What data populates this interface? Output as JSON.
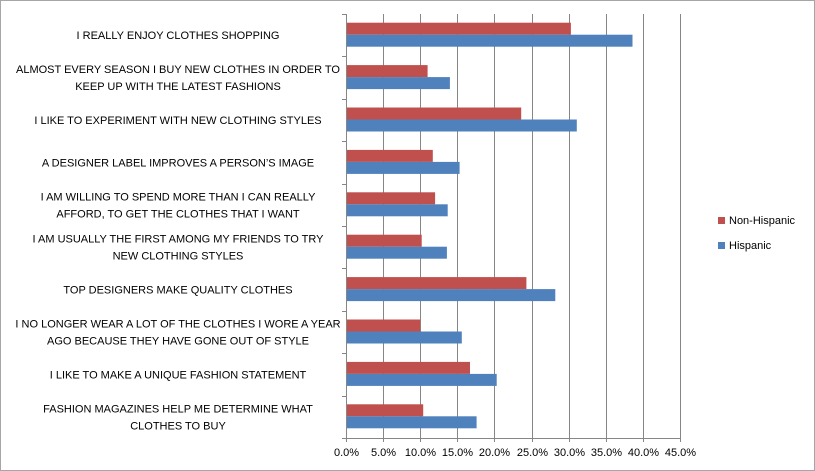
{
  "chart_data": {
    "type": "bar",
    "orientation": "horizontal",
    "categories": [
      "I REALLY ENJOY CLOTHES SHOPPING",
      "ALMOST EVERY SEASON I BUY NEW CLOTHES IN ORDER TO KEEP UP WITH THE LATEST FASHIONS",
      "I LIKE TO EXPERIMENT WITH NEW CLOTHING STYLES",
      "A DESIGNER LABEL IMPROVES A PERSON’S  IMAGE",
      "I AM WILLING TO SPEND MORE THAN I CAN REALLY AFFORD, TO GET THE CLOTHES THAT I WANT",
      "I AM USUALLY THE FIRST AMONG MY FRIENDS TO TRY NEW CLOTHING STYLES",
      "TOP DESIGNERS MAKE QUALITY CLOTHES",
      "I NO LONGER WEAR A LOT OF THE CLOTHES I WORE A YEAR AGO BECAUSE THEY HAVE GONE OUT OF STYLE",
      "I LIKE TO MAKE A UNIQUE FASHION STATEMENT",
      "FASHION MAGAZINES HELP ME DETERMINE WHAT CLOTHES TO BUY"
    ],
    "category_lines": [
      [
        "I REALLY ENJOY CLOTHES SHOPPING"
      ],
      [
        "ALMOST EVERY SEASON I BUY NEW CLOTHES IN ORDER TO",
        "KEEP UP WITH THE LATEST FASHIONS"
      ],
      [
        "I LIKE TO EXPERIMENT WITH NEW CLOTHING STYLES"
      ],
      [
        "A DESIGNER LABEL IMPROVES A PERSON’S  IMAGE"
      ],
      [
        "I AM WILLING TO SPEND MORE THAN I CAN REALLY",
        "AFFORD, TO GET THE CLOTHES THAT I WANT"
      ],
      [
        "I AM USUALLY THE FIRST AMONG MY FRIENDS TO TRY",
        "NEW CLOTHING STYLES"
      ],
      [
        "TOP DESIGNERS MAKE QUALITY CLOTHES"
      ],
      [
        "I NO LONGER WEAR A LOT OF THE CLOTHES I WORE A YEAR",
        "AGO BECAUSE THEY HAVE GONE OUT OF STYLE"
      ],
      [
        "I LIKE TO MAKE A UNIQUE FASHION STATEMENT"
      ],
      [
        "FASHION MAGAZINES HELP ME DETERMINE WHAT",
        "CLOTHES TO BUY"
      ]
    ],
    "series": [
      {
        "name": "Non-Hispanic",
        "color": "#c0504d",
        "values": [
          30.3,
          11.0,
          23.6,
          11.7,
          12.0,
          10.2,
          24.3,
          10.0,
          16.7,
          10.4
        ]
      },
      {
        "name": "Hispanic",
        "color": "#4f81bd",
        "values": [
          38.6,
          14.0,
          31.1,
          15.3,
          13.7,
          13.6,
          28.2,
          15.6,
          20.3,
          17.6
        ]
      }
    ],
    "xlim": [
      0,
      45
    ],
    "x_ticks": [
      0,
      5,
      10,
      15,
      20,
      25,
      30,
      35,
      40,
      45
    ],
    "x_tick_labels": [
      "0.0%",
      "5.0%",
      "10.0%",
      "15.0%",
      "20.0%",
      "25.0%",
      "30.0%",
      "35.0%",
      "40.0%",
      "45.0%"
    ],
    "grid": true,
    "legend_position": "right",
    "legend_order": [
      "Non-Hispanic",
      "Hispanic"
    ],
    "title": "",
    "xlabel": "",
    "ylabel": ""
  }
}
